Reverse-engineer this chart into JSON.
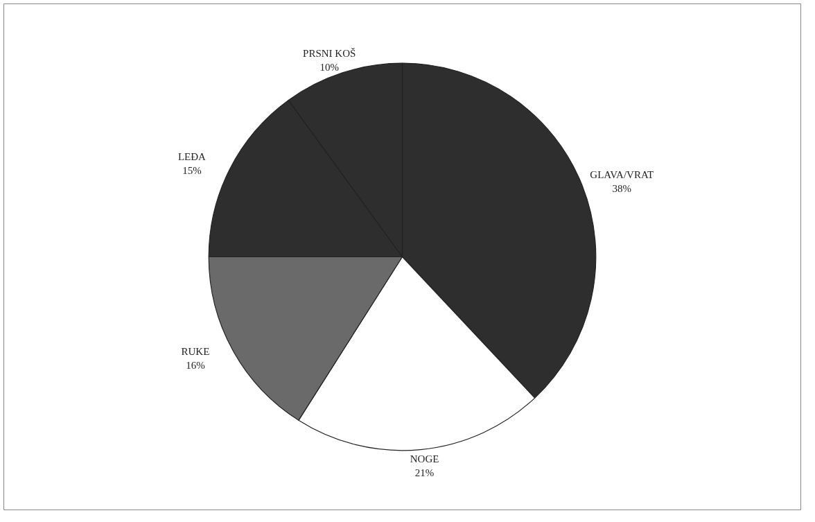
{
  "chart_data": {
    "type": "pie",
    "categories": [
      "GLAVA/VRAT",
      "NOGE",
      "RUKE",
      "LEĐA",
      "PRSNI KOŠ"
    ],
    "values": [
      38,
      21,
      16,
      15,
      10
    ],
    "colors": [
      "#2e2e2e",
      "#ffffff",
      "#6a6a6a",
      "#2e2e2e",
      "#2e2e2e"
    ],
    "value_labels": [
      "38%",
      "21%",
      "16%",
      "15%",
      "10%"
    ]
  }
}
